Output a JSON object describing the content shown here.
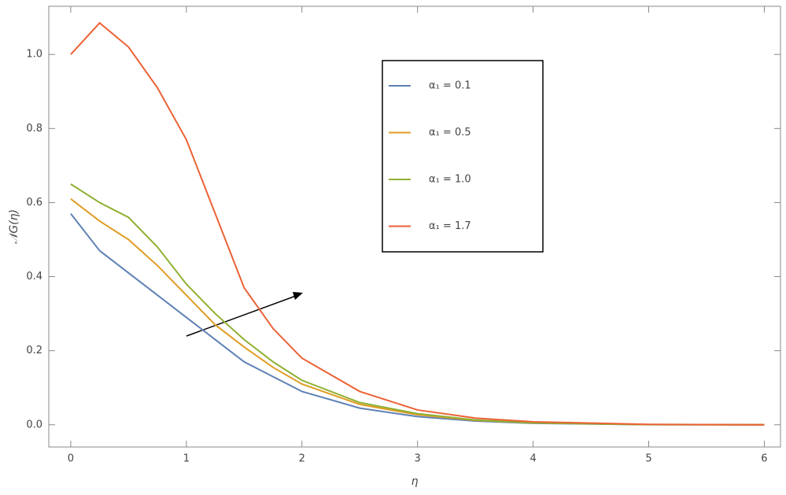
{
  "chart_data": {
    "type": "line",
    "xlabel": "η",
    "ylabel": "𝒩G(η)",
    "x": [
      0,
      0.25,
      0.5,
      0.75,
      1,
      1.25,
      1.5,
      1.75,
      2,
      2.5,
      3,
      3.5,
      4,
      5,
      6
    ],
    "series": [
      {
        "name": "α₁ = 0.1",
        "color": "#5e81b5",
        "values": [
          0.57,
          0.47,
          0.41,
          0.35,
          0.29,
          0.23,
          0.17,
          0.13,
          0.09,
          0.045,
          0.022,
          0.01,
          0.004,
          0.0004,
          0
        ]
      },
      {
        "name": "α₁ = 0.5",
        "color": "#e19c24",
        "values": [
          0.61,
          0.55,
          0.5,
          0.43,
          0.35,
          0.27,
          0.21,
          0.155,
          0.11,
          0.055,
          0.027,
          0.012,
          0.005,
          0.0005,
          0
        ]
      },
      {
        "name": "α₁ = 1.0",
        "color": "#8fb032",
        "values": [
          0.65,
          0.6,
          0.56,
          0.48,
          0.38,
          0.3,
          0.23,
          0.17,
          0.12,
          0.06,
          0.03,
          0.013,
          0.005,
          0.0005,
          0
        ]
      },
      {
        "name": "α₁ = 1.7",
        "color": "#eb6235",
        "values": [
          1.0,
          1.085,
          1.02,
          0.91,
          0.77,
          0.57,
          0.37,
          0.26,
          0.18,
          0.09,
          0.04,
          0.018,
          0.008,
          0.001,
          0
        ]
      }
    ],
    "xlim": [
      -0.19,
      6.14
    ],
    "ylim": [
      -0.06,
      1.13
    ],
    "xticks": [
      0,
      1,
      2,
      3,
      4,
      5,
      6
    ],
    "yticks": [
      {
        "value": 0,
        "label": "0.0"
      },
      {
        "value": 0.2,
        "label": "0.2"
      },
      {
        "value": 0.4,
        "label": "0.4"
      },
      {
        "value": 0.6,
        "label": "0.6"
      },
      {
        "value": 0.8,
        "label": "0.8"
      },
      {
        "value": 1,
        "label": "1.0"
      }
    ],
    "legend": "upper right"
  }
}
